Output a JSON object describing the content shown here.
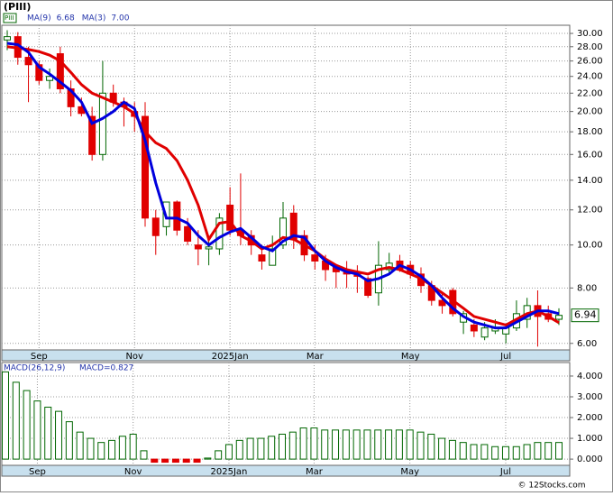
{
  "chart_data": [
    {
      "type": "candlestick",
      "title": "(PIII)",
      "symbol": "PIII",
      "categories": [
        null,
        null,
        null,
        "Sep",
        null,
        null,
        null,
        null,
        null,
        null,
        null,
        null,
        "Nov",
        null,
        null,
        null,
        null,
        null,
        null,
        null,
        null,
        "2025Jan",
        null,
        null,
        null,
        null,
        null,
        null,
        null,
        "Mar",
        null,
        null,
        null,
        null,
        null,
        null,
        null,
        null,
        "May",
        null,
        null,
        null,
        null,
        null,
        null,
        null,
        null,
        "Jul",
        null,
        null,
        null,
        null,
        null
      ],
      "open": [
        29.0,
        29.5,
        26.5,
        25.5,
        23.5,
        27.0,
        22.5,
        20.5,
        19.5,
        16.0,
        22.0,
        21.0,
        20.0,
        19.5,
        11.5,
        11.0,
        12.5,
        11.0,
        10.0,
        9.8,
        9.8,
        12.3,
        10.8,
        10.5,
        9.5,
        9.0,
        10.0,
        11.8,
        10.5,
        9.5,
        9.2,
        8.9,
        8.7,
        8.6,
        8.4,
        7.8,
        8.8,
        9.2,
        9.0,
        8.6,
        8.1,
        7.5,
        7.9,
        6.7,
        6.6,
        6.2,
        6.4,
        6.3,
        6.5,
        6.8,
        7.3,
        7.0,
        6.8
      ],
      "high": [
        30.5,
        30.2,
        28.0,
        26.0,
        25.0,
        28.0,
        23.5,
        21.5,
        20.5,
        26.0,
        23.0,
        21.5,
        21.0,
        21.0,
        12.0,
        12.5,
        12.6,
        11.5,
        10.8,
        10.2,
        11.8,
        13.5,
        14.5,
        10.8,
        10.0,
        10.5,
        12.5,
        12.3,
        10.8,
        10.0,
        9.5,
        9.0,
        9.2,
        9.0,
        8.5,
        10.2,
        9.6,
        9.5,
        9.2,
        8.9,
        8.3,
        7.8,
        8.0,
        7.1,
        6.8,
        6.7,
        6.8,
        6.6,
        7.5,
        7.6,
        7.9,
        7.3,
        7.2
      ],
      "low": [
        27.5,
        25.5,
        21.0,
        23.0,
        22.5,
        22.0,
        19.5,
        19.5,
        15.5,
        15.5,
        20.5,
        18.5,
        18.0,
        11.0,
        9.5,
        10.5,
        10.5,
        10.0,
        9.0,
        9.0,
        9.5,
        10.5,
        10.0,
        9.5,
        8.8,
        9.0,
        9.8,
        9.8,
        9.2,
        8.8,
        8.3,
        8.0,
        8.0,
        7.8,
        7.6,
        7.3,
        8.6,
        8.7,
        8.4,
        7.8,
        7.3,
        7.0,
        6.9,
        6.3,
        6.2,
        6.1,
        6.3,
        6.0,
        6.4,
        6.5,
        5.9,
        6.7,
        6.6
      ],
      "close": [
        29.5,
        26.5,
        25.5,
        23.5,
        24.0,
        22.5,
        20.5,
        19.8,
        16.0,
        22.0,
        21.0,
        20.5,
        19.5,
        11.5,
        10.5,
        12.5,
        10.8,
        10.2,
        9.8,
        9.9,
        11.5,
        10.8,
        10.5,
        10.0,
        9.2,
        9.8,
        11.5,
        10.3,
        9.5,
        9.2,
        8.8,
        8.7,
        8.6,
        8.5,
        7.7,
        9.0,
        9.1,
        8.8,
        8.6,
        8.1,
        7.5,
        7.3,
        7.0,
        7.0,
        6.4,
        6.5,
        6.5,
        6.5,
        7.0,
        7.3,
        6.9,
        6.8,
        6.94
      ],
      "last_label": "6.94",
      "up_color": "#006600",
      "down_color": "#e00000",
      "series": [
        {
          "name": "MA(9)",
          "legend_value": "6.68",
          "color": "#e00000",
          "values": [
            28,
            27.8,
            27.6,
            27.3,
            26.8,
            26,
            24.5,
            23,
            22,
            21.5,
            21,
            20.5,
            19.8,
            18,
            17,
            16.5,
            15.5,
            14,
            12.3,
            10.3,
            11.2,
            11.3,
            10.5,
            10.2,
            9.8,
            10,
            10.4,
            10.3,
            10,
            9.7,
            9.3,
            9,
            8.8,
            8.7,
            8.6,
            8.8,
            8.9,
            8.8,
            8.6,
            8.4,
            8.1,
            7.8,
            7.5,
            7.2,
            6.9,
            6.8,
            6.7,
            6.6,
            6.8,
            7,
            7.1,
            6.9,
            6.68
          ]
        },
        {
          "name": "MA(3)",
          "legend_value": "7.00",
          "color": "#0000dd",
          "values": [
            28.5,
            28.3,
            27.2,
            25.2,
            24.3,
            23.3,
            22.3,
            21,
            18.8,
            19.3,
            20,
            21,
            20.3,
            17.2,
            13.8,
            11.5,
            11.5,
            11.2,
            10.5,
            10,
            10.4,
            10.7,
            10.9,
            10.4,
            9.9,
            9.7,
            10.2,
            10.5,
            10.4,
            9.7,
            9.2,
            8.9,
            8.7,
            8.6,
            8.3,
            8.4,
            8.6,
            9,
            8.8,
            8.5,
            8.1,
            7.6,
            7.2,
            6.9,
            6.7,
            6.6,
            6.5,
            6.5,
            6.7,
            6.9,
            7.1,
            7.1,
            7.0
          ]
        }
      ],
      "log": true,
      "grid": true,
      "ylim": [
        5.8,
        31.3
      ],
      "yticks": [
        {
          "value": 6,
          "label": "6.00"
        },
        {
          "value": 8,
          "label": "8.00"
        },
        {
          "value": 10,
          "label": "10.00"
        },
        {
          "value": 12,
          "label": "12.00"
        },
        {
          "value": 14,
          "label": "14.00"
        },
        {
          "value": 16,
          "label": "16.00"
        },
        {
          "value": 18,
          "label": "18.00"
        },
        {
          "value": 20,
          "label": "20.00"
        },
        {
          "value": 22,
          "label": "22.00"
        },
        {
          "value": 24,
          "label": "24.00"
        },
        {
          "value": 26,
          "label": "26.00"
        },
        {
          "value": 28,
          "label": "28.00"
        },
        {
          "value": 30,
          "label": "30.00"
        }
      ]
    },
    {
      "type": "bar",
      "title": "MACD(26,12,9)",
      "label": "MACD=0.827",
      "categories": [
        null,
        null,
        null,
        "Sep",
        null,
        null,
        null,
        null,
        null,
        null,
        null,
        null,
        "Nov",
        null,
        null,
        null,
        null,
        null,
        null,
        null,
        null,
        "2025Jan",
        null,
        null,
        null,
        null,
        null,
        null,
        null,
        "Mar",
        null,
        null,
        null,
        null,
        null,
        null,
        null,
        null,
        "May",
        null,
        null,
        null,
        null,
        null,
        null,
        null,
        null,
        "Jul",
        null,
        null,
        null,
        null,
        null
      ],
      "values": [
        4.2,
        3.7,
        3.3,
        2.8,
        2.5,
        2.3,
        1.8,
        1.3,
        1.0,
        0.8,
        0.9,
        1.1,
        1.2,
        0.4,
        -0.15,
        -0.15,
        -0.15,
        -0.15,
        -0.15,
        0.05,
        0.4,
        0.7,
        0.9,
        1.0,
        1.0,
        1.1,
        1.2,
        1.3,
        1.5,
        1.5,
        1.4,
        1.4,
        1.4,
        1.4,
        1.4,
        1.4,
        1.4,
        1.4,
        1.4,
        1.3,
        1.2,
        1.0,
        0.9,
        0.8,
        0.7,
        0.7,
        0.6,
        0.6,
        0.6,
        0.7,
        0.8,
        0.8,
        0.8
      ],
      "up_color": "#006600",
      "down_color": "#e00000",
      "grid": true,
      "ylim": [
        -0.3,
        4.65
      ],
      "yticks": [
        {
          "value": 0,
          "label": "0.000"
        },
        {
          "value": 1,
          "label": "1.000"
        },
        {
          "value": 2,
          "label": "2.000"
        },
        {
          "value": 3,
          "label": "3.000"
        },
        {
          "value": 4,
          "label": "4.000"
        }
      ]
    }
  ],
  "watermark": "© 12Stocks.com"
}
